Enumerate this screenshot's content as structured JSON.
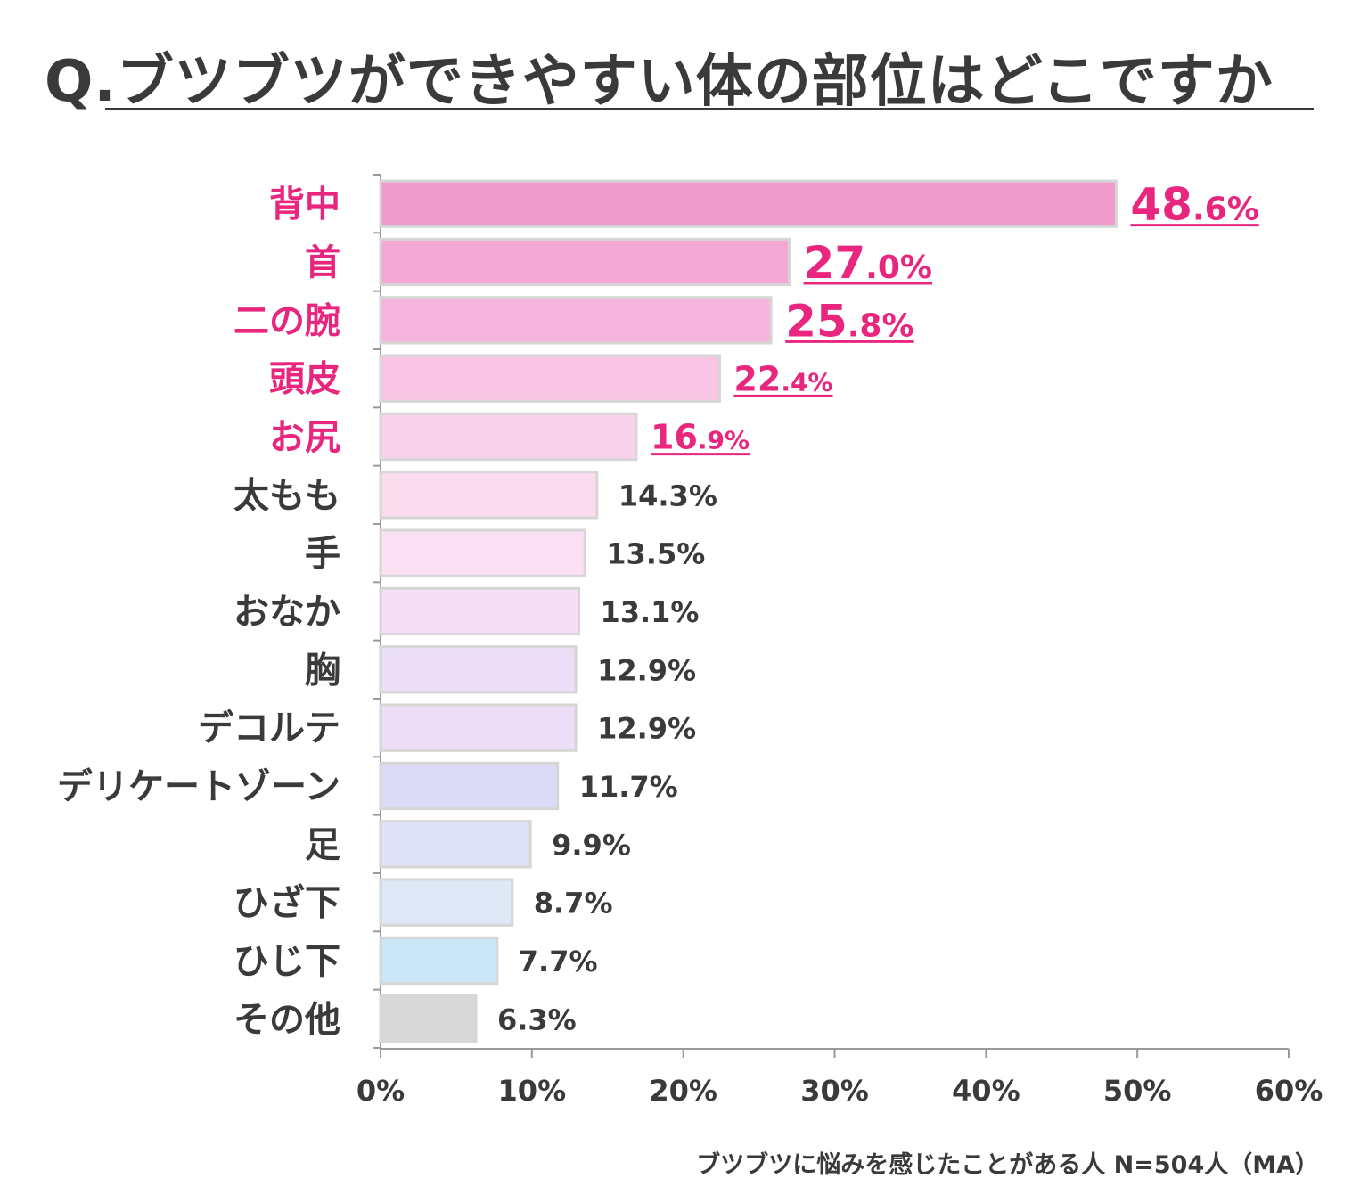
{
  "title": "Q.ブツブツができやすい体の部位はどこですか",
  "footnote": "ブツブツに悩みを感じたことがある人 N=504人（MA）",
  "colors": {
    "text": "#3a3a3a",
    "highlight": "#e8267e",
    "bar_border": "#d6d6d6",
    "axis": "#9a9a9a"
  },
  "chart_data": {
    "type": "bar",
    "orientation": "horizontal",
    "title": "Q.ブツブツができやすい体の部位はどこですか",
    "xlabel": "",
    "ylabel": "",
    "xlim": [
      0,
      60
    ],
    "x_ticks": [
      "0%",
      "10%",
      "20%",
      "30%",
      "40%",
      "50%",
      "60%"
    ],
    "grid": false,
    "categories": [
      "背中",
      "首",
      "二の腕",
      "頭皮",
      "お尻",
      "太もも",
      "手",
      "おなか",
      "胸",
      "デコルテ",
      "デリケートゾーン",
      "足",
      "ひざ下",
      "ひじ下",
      "その他"
    ],
    "values": [
      48.6,
      27.0,
      25.8,
      22.4,
      16.9,
      14.3,
      13.5,
      13.1,
      12.9,
      12.9,
      11.7,
      9.9,
      8.7,
      7.7,
      6.3
    ],
    "value_labels": [
      "48.6%",
      "27.0%",
      "25.8%",
      "22.4%",
      "16.9%",
      "14.3%",
      "13.5%",
      "13.1%",
      "12.9%",
      "12.9%",
      "11.7%",
      "9.9%",
      "8.7%",
      "7.7%",
      "6.3%"
    ],
    "bar_colors": [
      "#ee9dca",
      "#f3a9d4",
      "#f5b3dd",
      "#f8c5e5",
      "#f9d1ea",
      "#fadcee",
      "#fbdff2",
      "#f5dff6",
      "#ecdef6",
      "#ebdef6",
      "#dcdbf7",
      "#dfe3f7",
      "#dfe8f7",
      "#c8e6f5",
      "#d8d8d8"
    ],
    "highlighted": [
      true,
      true,
      true,
      true,
      true,
      false,
      false,
      false,
      false,
      false,
      false,
      false,
      false,
      false,
      false
    ]
  }
}
